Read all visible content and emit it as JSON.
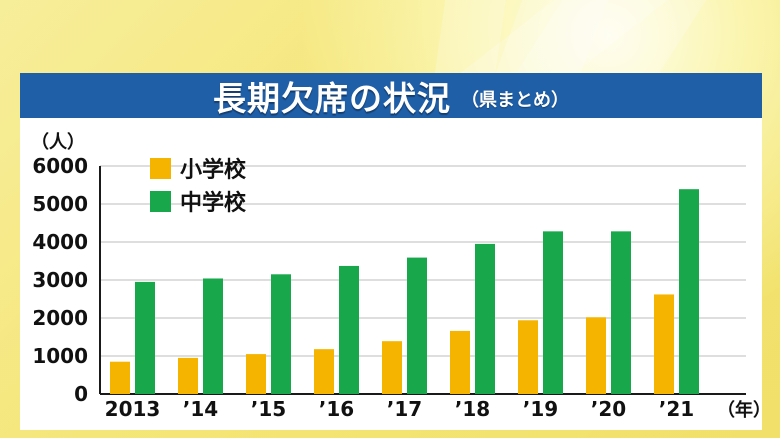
{
  "title": {
    "main": "長期欠席の状況",
    "sub": "（県まとめ）"
  },
  "colors": {
    "title_bar": "#1f5fa8",
    "elementary": "#f5b400",
    "junior_high": "#18a84b",
    "axis": "#1a1a1a",
    "grid": "#bdbdbd",
    "background": "#f5e67c"
  },
  "chart_data": {
    "type": "bar",
    "title": "長期欠席の状況",
    "subtitle": "（県まとめ）",
    "categories": [
      "2013",
      "’14",
      "’15",
      "’16",
      "’17",
      "’18",
      "’19",
      "’20",
      "’21"
    ],
    "series": [
      {
        "name": "小学校",
        "values": [
          850,
          950,
          1050,
          1180,
          1390,
          1660,
          1940,
          2020,
          2620
        ]
      },
      {
        "name": "中学校",
        "values": [
          2950,
          3040,
          3150,
          3370,
          3590,
          3950,
          4280,
          4280,
          5390
        ]
      }
    ],
    "ylim": [
      0,
      6000
    ],
    "yticks": [
      "0",
      "1000",
      "2000",
      "3000",
      "4000",
      "5000",
      "6000"
    ],
    "ylabel": "（人）",
    "xlabel": "（年）",
    "grid": true,
    "legend": "top-left"
  }
}
